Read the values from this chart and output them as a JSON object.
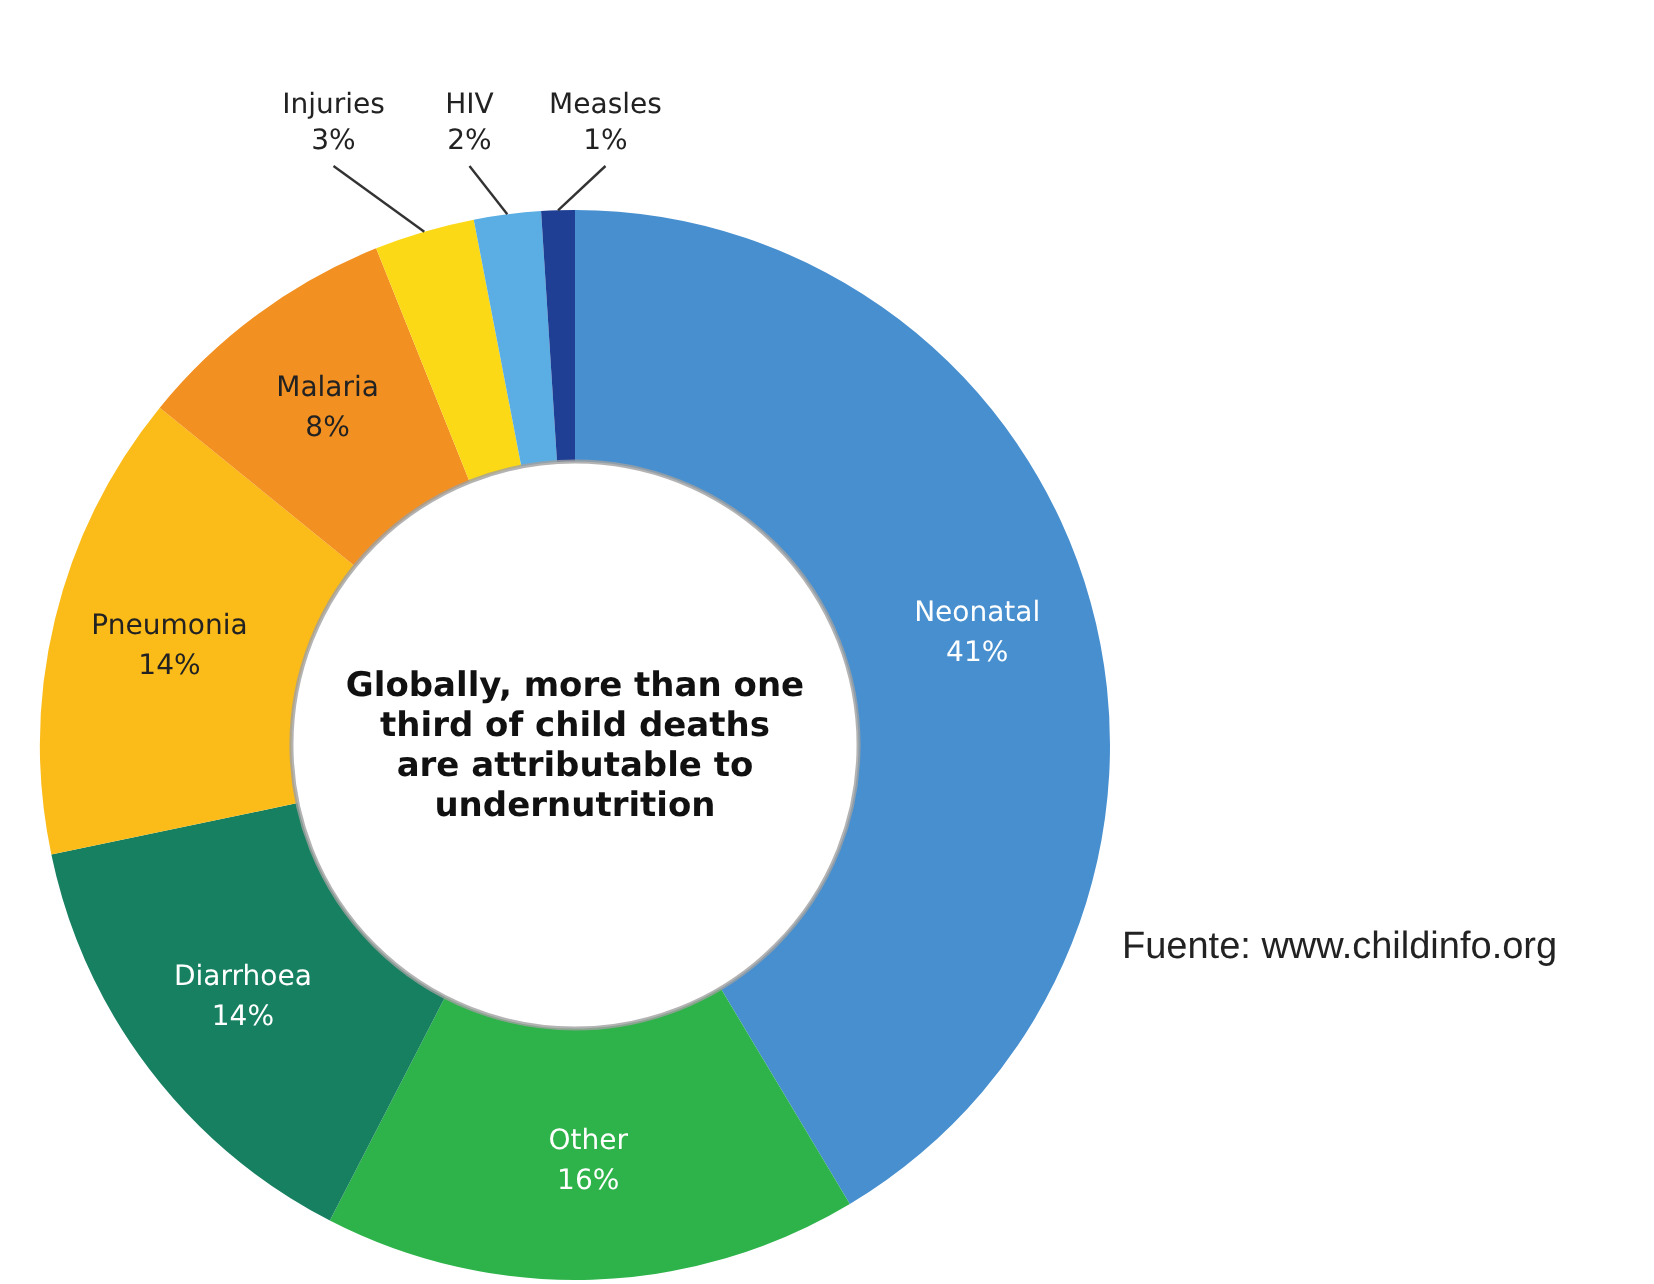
{
  "chart_data": {
    "type": "donut",
    "categories": [
      "Neonatal",
      "Other",
      "Diarrhoea",
      "Pneumonia",
      "Malaria",
      "Injuries",
      "HIV",
      "Measles"
    ],
    "values": [
      41,
      16,
      14,
      14,
      8,
      3,
      2,
      1
    ],
    "colors": [
      "#478fcf",
      "#2db34a",
      "#168060",
      "#fbbb19",
      "#f29022",
      "#fcd917",
      "#5aaee3",
      "#1f3f94"
    ],
    "value_labels": [
      "41%",
      "16%",
      "14%",
      "14%",
      "8%",
      "3%",
      "2%",
      "1%"
    ],
    "legend": false,
    "annotations": [
      "Globally, more than one third of child deaths are attributable to undernutrition",
      "Fuente: www.childinfo.org"
    ]
  }
}
